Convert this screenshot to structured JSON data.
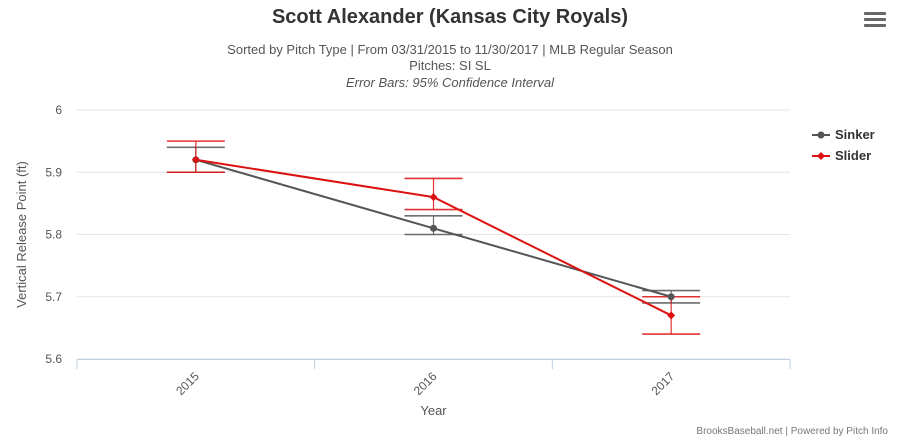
{
  "chart_data": {
    "type": "line",
    "title": "Scott Alexander (Kansas City Royals)",
    "subtitle_lines": [
      "Sorted by Pitch Type | From 03/31/2015 to 11/30/2017 | MLB Regular Season",
      "Pitches: SI SL",
      "Error Bars: 95% Confidence Interval"
    ],
    "xlabel": "Year",
    "ylabel": "Vertical Release Point (ft)",
    "categories": [
      "2015",
      "2016",
      "2017"
    ],
    "ylim": [
      5.6,
      6.0
    ],
    "yticks": [
      "5.6",
      "5.7",
      "5.8",
      "5.9",
      "6"
    ],
    "grid": true,
    "legend_position": "right",
    "series": [
      {
        "name": "Sinker",
        "color": "#555555",
        "values": [
          5.92,
          5.81,
          5.7
        ],
        "error_low": [
          5.9,
          5.8,
          5.69
        ],
        "error_high": [
          5.94,
          5.83,
          5.71
        ]
      },
      {
        "name": "Slider",
        "color": "#dd1111",
        "values": [
          5.92,
          5.86,
          5.67
        ],
        "error_low": [
          5.9,
          5.84,
          5.64
        ],
        "error_high": [
          5.95,
          5.89,
          5.7
        ]
      }
    ],
    "credit": "BrooksBaseball.net | Powered by Pitch Info"
  },
  "icons": {
    "menu": "hamburger-menu-icon"
  }
}
